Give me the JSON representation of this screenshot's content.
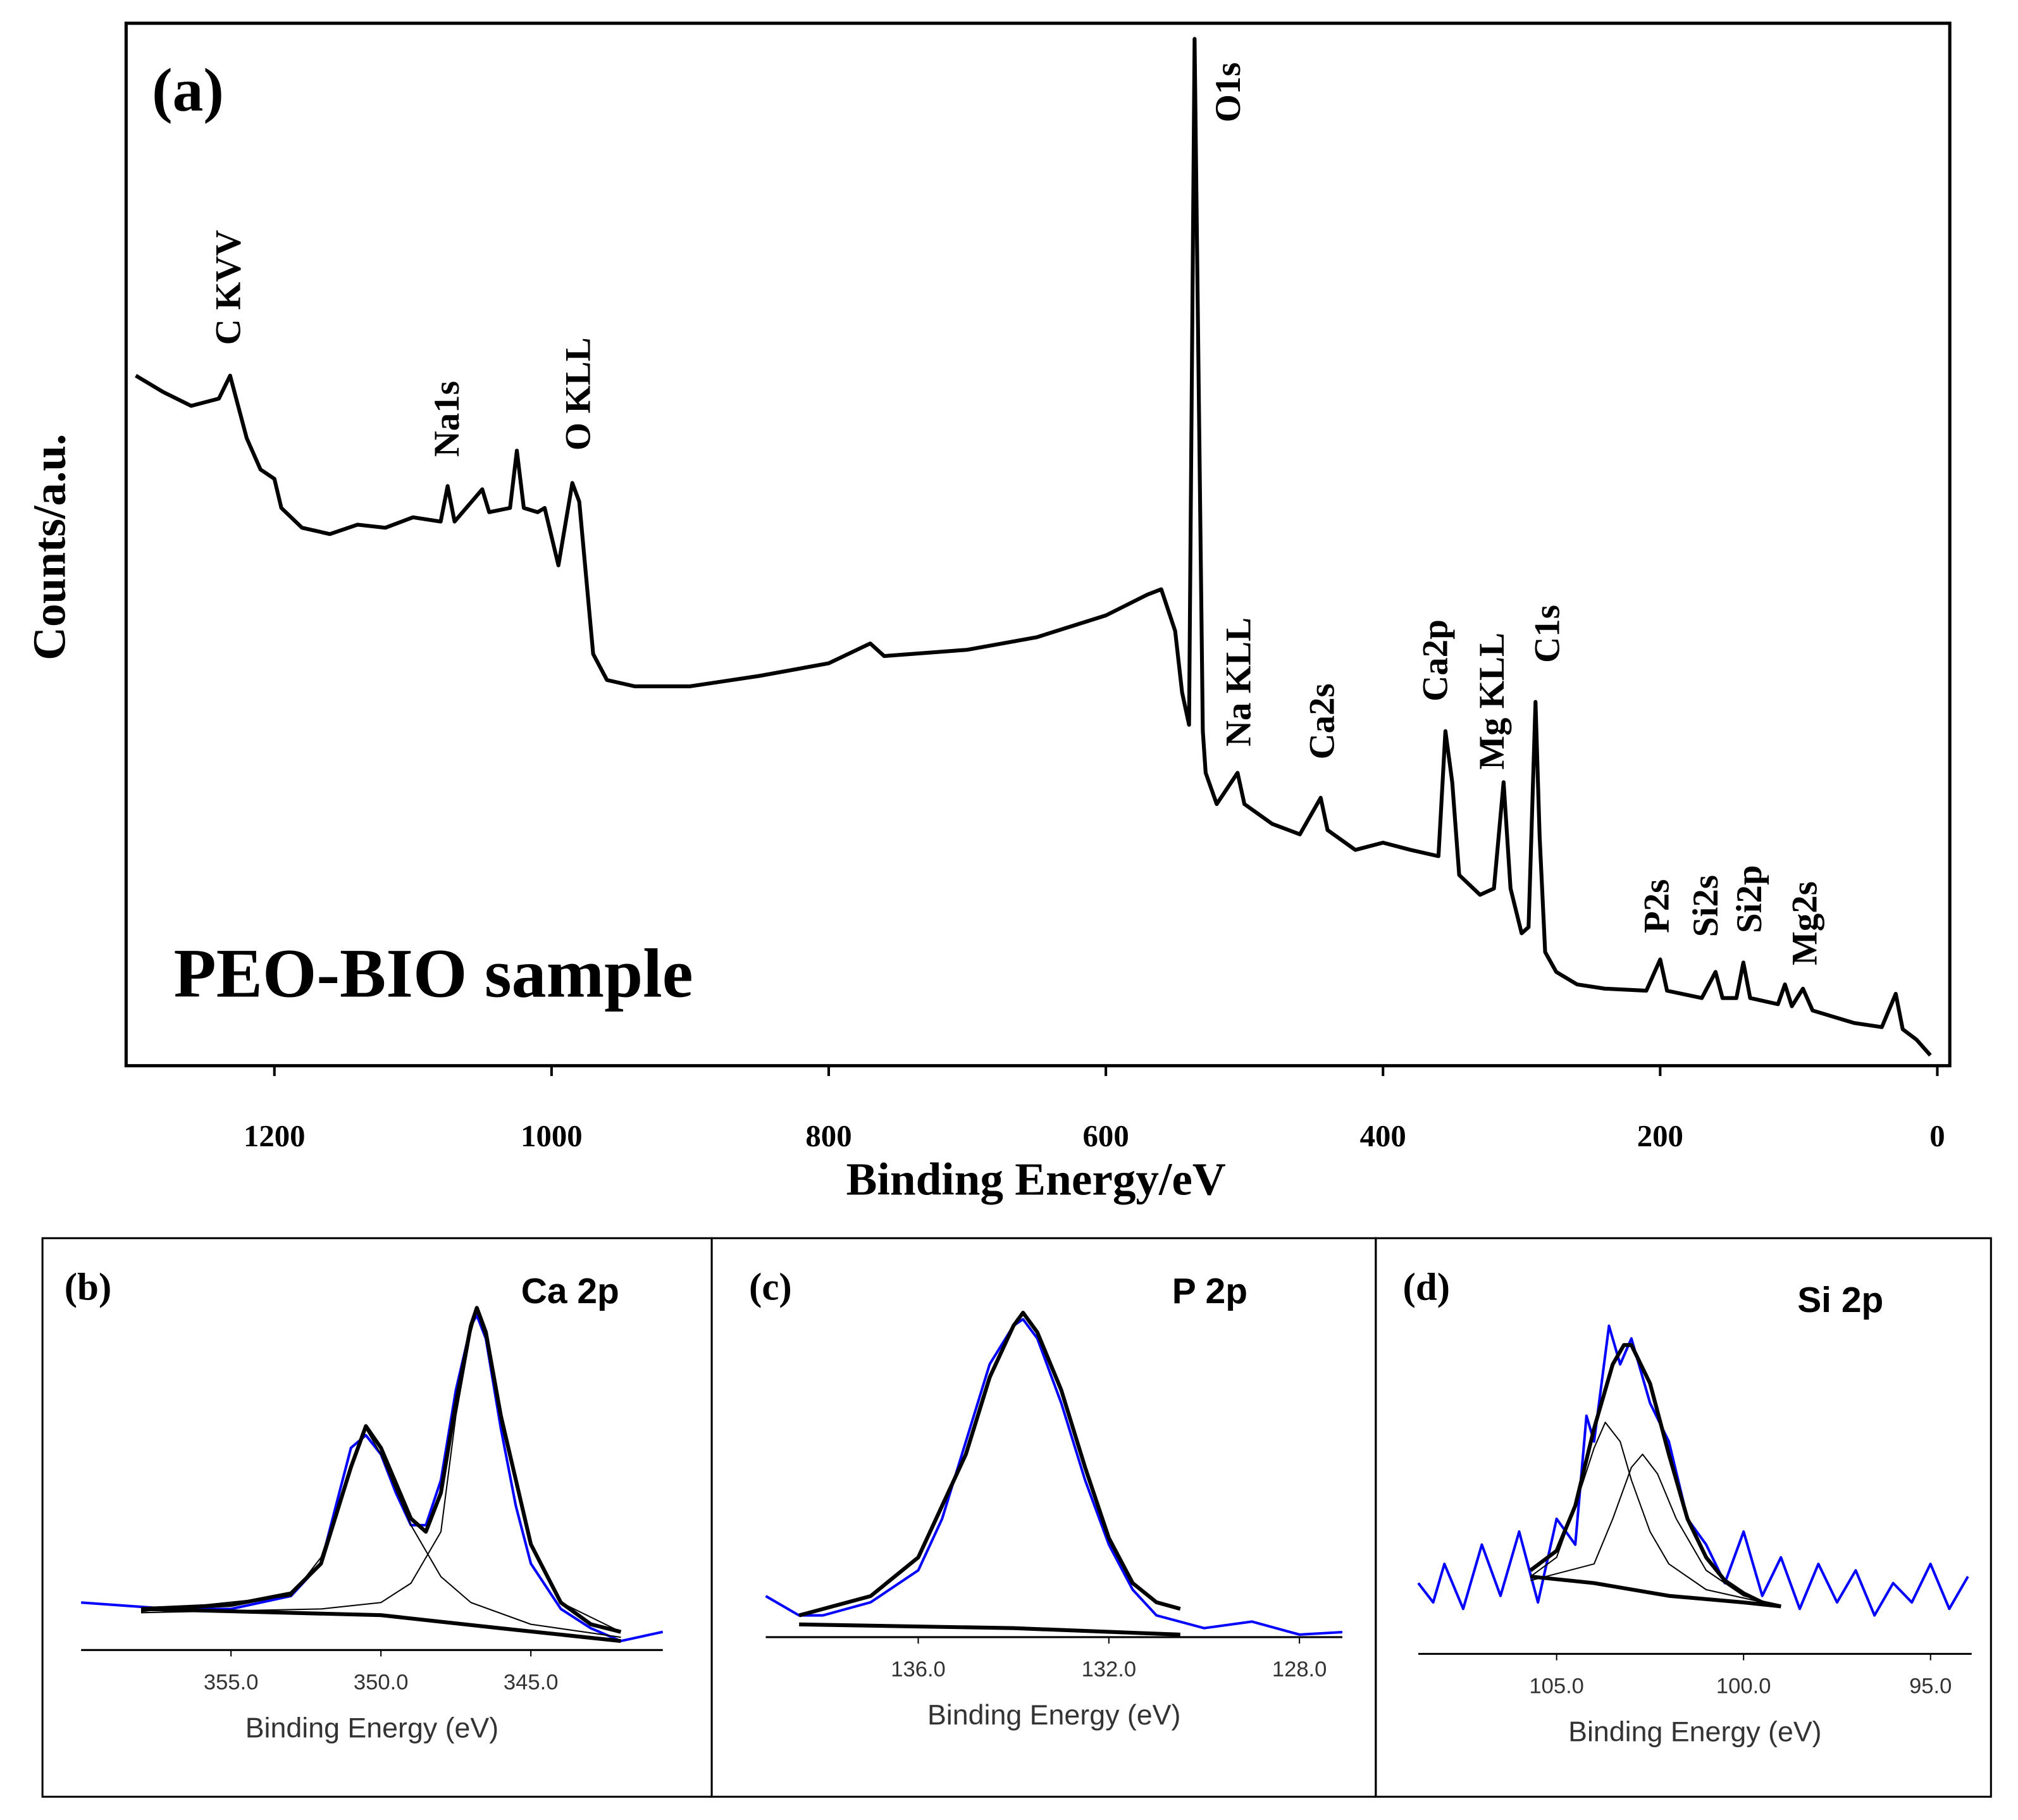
{
  "chart_data": [
    {
      "type": "line",
      "panel_label": "(a)",
      "annotation": "PEO-BIO sample",
      "xlabel": "Binding Energy/eV",
      "ylabel": "Counts/a.u.",
      "peak_labels": [
        "C KVV",
        "Na1s",
        "O KLL",
        "O1s",
        "Na KLL",
        "Ca2s",
        "Ca2p",
        "Mg KLL",
        "C1s",
        "P2s",
        "Si2s",
        "Si2p",
        "Mg2s"
      ],
      "xlim": [
        1307,
        -9
      ],
      "ylim": [
        0,
        100
      ],
      "xticks": [
        1200,
        1000,
        800,
        600,
        400,
        200,
        0
      ],
      "series": [
        {
          "color": "#000000",
          "x": [
            1300,
            1280,
            1260,
            1240,
            1232,
            1220,
            1210,
            1200,
            1195,
            1180,
            1160,
            1140,
            1120,
            1100,
            1080,
            1075,
            1070,
            1050,
            1045,
            1030,
            1025,
            1020,
            1010,
            1005,
            995,
            985,
            980,
            970,
            960,
            940,
            900,
            850,
            800,
            770,
            760,
            700,
            650,
            600,
            570,
            560,
            550,
            545,
            540,
            536,
            533,
            530,
            528,
            520,
            505,
            500,
            480,
            460,
            445,
            440,
            420,
            400,
            380,
            360,
            355,
            350,
            345,
            330,
            320,
            313,
            308,
            300,
            295,
            290,
            287,
            283,
            275,
            260,
            240,
            210,
            200,
            195,
            170,
            160,
            155,
            145,
            140,
            135,
            115,
            110,
            105,
            97,
            90,
            60,
            40,
            30,
            25,
            15,
            5
          ],
          "values": [
            66.2,
            64.6,
            63.3,
            64.0,
            66.2,
            60.2,
            57.2,
            56.3,
            53.5,
            51.6,
            51.0,
            51.9,
            51.6,
            52.6,
            52.2,
            55.6,
            52.2,
            55.3,
            53.1,
            53.5,
            59.0,
            53.5,
            53.1,
            53.5,
            48.0,
            55.9,
            54.1,
            39.5,
            37.0,
            36.4,
            36.4,
            37.4,
            38.6,
            40.5,
            39.3,
            39.9,
            41.1,
            43.2,
            45.2,
            45.7,
            41.7,
            35.8,
            32.7,
            98.5,
            65.2,
            32.1,
            28.1,
            25.1,
            28.1,
            25.1,
            23.2,
            22.2,
            25.7,
            22.6,
            20.7,
            21.4,
            20.7,
            20.1,
            32.1,
            27.2,
            18.3,
            16.4,
            17.0,
            27.2,
            17.0,
            12.7,
            13.3,
            34.9,
            22.0,
            10.9,
            9.0,
            7.8,
            7.4,
            7.2,
            10.2,
            7.2,
            6.5,
            9.0,
            6.5,
            6.5,
            9.9,
            6.5,
            5.9,
            7.8,
            5.7,
            7.4,
            5.3,
            4.1,
            3.7,
            6.9,
            3.5,
            2.5,
            1.0
          ]
        }
      ]
    },
    {
      "type": "line",
      "panel_label": "(b)",
      "title": "Ca 2p",
      "xlabel": "Binding Energy (eV)",
      "xlim": [
        360,
        340.6
      ],
      "ylim": [
        0,
        100
      ],
      "xticks": [
        {
          "value": 355,
          "label": "355.0"
        },
        {
          "value": 350,
          "label": "350.0"
        },
        {
          "value": 345,
          "label": "345.0"
        }
      ],
      "series": [
        {
          "color": "#0000ff",
          "x": [
            360,
            357,
            355,
            353,
            352,
            351.5,
            351,
            350.5,
            350,
            349.5,
            349,
            348.5,
            348,
            347.5,
            347,
            346.8,
            346.5,
            346,
            345.5,
            345,
            344,
            343,
            342,
            341,
            340.6
          ],
          "values": [
            13.1,
            11.3,
            11.3,
            14.9,
            23.8,
            39.7,
            55.7,
            59.2,
            53.9,
            43.3,
            34.4,
            34.4,
            46.8,
            71.6,
            89.4,
            92.2,
            85.8,
            61.0,
            39.7,
            23.8,
            11.3,
            6.0,
            2.5,
            4.3,
            5.0
          ]
        },
        {
          "color": "#000000",
          "x": [
            358,
            355,
            353,
            352,
            351,
            350.5,
            350,
            349,
            348.5,
            348,
            347.5,
            347,
            346.8,
            346.5,
            346,
            345,
            344,
            343,
            342
          ],
          "values": [
            11.3,
            12.4,
            15.6,
            23.8,
            50.4,
            61.7,
            55.7,
            36.2,
            32.6,
            43.3,
            68.1,
            89.4,
            94.3,
            87.6,
            64.5,
            29.1,
            13.1,
            7.1,
            5.0
          ]
        },
        {
          "color": "#000000",
          "x": [
            358,
            353,
            352,
            351,
            350.5,
            350,
            349,
            348,
            347,
            345,
            342
          ],
          "values": [
            10.6,
            14.9,
            25.5,
            50.4,
            61.0,
            53.9,
            34.4,
            20.2,
            13.1,
            7.1,
            3.5
          ]
        },
        {
          "color": "#000000",
          "x": [
            358,
            352,
            350,
            349,
            348,
            347.5,
            347,
            346.8,
            346.5,
            346,
            345,
            344,
            342
          ],
          "values": [
            10.3,
            11.3,
            13.1,
            18.4,
            32.6,
            64.5,
            87.6,
            93.6,
            85.8,
            62.8,
            29.1,
            13.1,
            5.0
          ]
        },
        {
          "color": "#000000",
          "x": [
            358,
            350,
            346,
            342
          ],
          "values": [
            11.3,
            9.6,
            6.0,
            2.5
          ]
        }
      ]
    },
    {
      "type": "line",
      "panel_label": "(c)",
      "title": "P 2p",
      "xlabel": "Binding Energy (eV)",
      "xlim": [
        139.2,
        127.1
      ],
      "ylim": [
        0,
        100
      ],
      "xticks": [
        {
          "value": 136,
          "label": "136.0"
        },
        {
          "value": 132,
          "label": "132.0"
        },
        {
          "value": 128,
          "label": "128.0"
        }
      ],
      "series": [
        {
          "color": "#0000ff",
          "x": [
            139.2,
            138.5,
            138,
            137,
            136,
            135.5,
            135,
            134.5,
            134,
            133.8,
            133.5,
            133,
            132.5,
            132,
            131.5,
            131,
            130,
            129,
            128,
            127.1
          ],
          "values": [
            11.3,
            6.0,
            6.0,
            9.6,
            18.4,
            32.6,
            53.9,
            75.2,
            85.8,
            87.6,
            82.3,
            64.5,
            43.3,
            25.5,
            13.1,
            6.0,
            2.5,
            4.3,
            0.7,
            1.4
          ]
        },
        {
          "color": "#000000",
          "x": [
            138.5,
            137,
            136,
            135,
            134.5,
            134,
            133.8,
            133.5,
            133,
            132.5,
            132,
            131.5,
            131,
            130.5
          ],
          "values": [
            6.0,
            11.3,
            22.0,
            50.4,
            71.6,
            85.8,
            89.4,
            84.0,
            68.1,
            46.8,
            27.3,
            14.9,
            9.6,
            7.8
          ]
        },
        {
          "color": "#000000",
          "x": [
            138.5,
            134,
            130.5
          ],
          "values": [
            3.5,
            2.5,
            0.7
          ]
        }
      ]
    },
    {
      "type": "line",
      "panel_label": "(d)",
      "title": "Si 2p",
      "xlabel": "Binding Energy (eV)",
      "xlim": [
        108.7,
        93.9
      ],
      "ylim": [
        0,
        100
      ],
      "xticks": [
        {
          "value": 105,
          "label": "105.0"
        },
        {
          "value": 100,
          "label": "100.0"
        },
        {
          "value": 95,
          "label": "95.0"
        }
      ],
      "series": [
        {
          "color": "#0000ff",
          "x": [
            108.7,
            108.3,
            108,
            107.5,
            107,
            106.5,
            106,
            105.5,
            105,
            104.5,
            104.2,
            104,
            103.6,
            103.3,
            103,
            102.5,
            102,
            101.5,
            101,
            100.5,
            100,
            99.5,
            99,
            98.5,
            98,
            97.5,
            97,
            96.5,
            96,
            95.5,
            95,
            94.5,
            94
          ],
          "values": [
            19.5,
            14.2,
            24.8,
            12.4,
            30.1,
            16.0,
            33.7,
            14.2,
            37.2,
            30.1,
            65.6,
            58.5,
            90.4,
            79.8,
            86.9,
            69.1,
            58.5,
            37.2,
            30.1,
            19.5,
            33.7,
            16.0,
            26.6,
            12.4,
            24.8,
            14.2,
            23.0,
            10.6,
            19.5,
            14.2,
            24.8,
            12.4,
            21.3
          ]
        },
        {
          "color": "#000000",
          "x": [
            105.7,
            105,
            104.5,
            104,
            103.5,
            103.2,
            103,
            102.5,
            102,
            101.5,
            101,
            100.5,
            100,
            99.5,
            99
          ],
          "values": [
            23.0,
            28.4,
            40.8,
            62.1,
            79.8,
            85.1,
            85.1,
            74.5,
            55.0,
            37.2,
            26.6,
            20.2,
            16.7,
            14.2,
            13.1
          ]
        },
        {
          "color": "#000000",
          "x": [
            105.7,
            105,
            104.5,
            104,
            103.7,
            103.3,
            103,
            102.5,
            102,
            101,
            99
          ],
          "values": [
            21.3,
            26.6,
            40.8,
            56.7,
            63.8,
            58.5,
            47.9,
            33.7,
            24.8,
            17.7,
            13.1
          ]
        },
        {
          "color": "#000000",
          "x": [
            105.7,
            104,
            103.5,
            103,
            102.7,
            102.3,
            101.8,
            101,
            100,
            99
          ],
          "values": [
            20.2,
            24.8,
            37.2,
            51.4,
            55.0,
            49.6,
            37.2,
            23.0,
            16.0,
            13.1
          ]
        },
        {
          "color": "#000000",
          "x": [
            105.7,
            104,
            102,
            100,
            99
          ],
          "values": [
            21.3,
            19.5,
            16.0,
            14.2,
            13.1
          ]
        }
      ]
    }
  ]
}
